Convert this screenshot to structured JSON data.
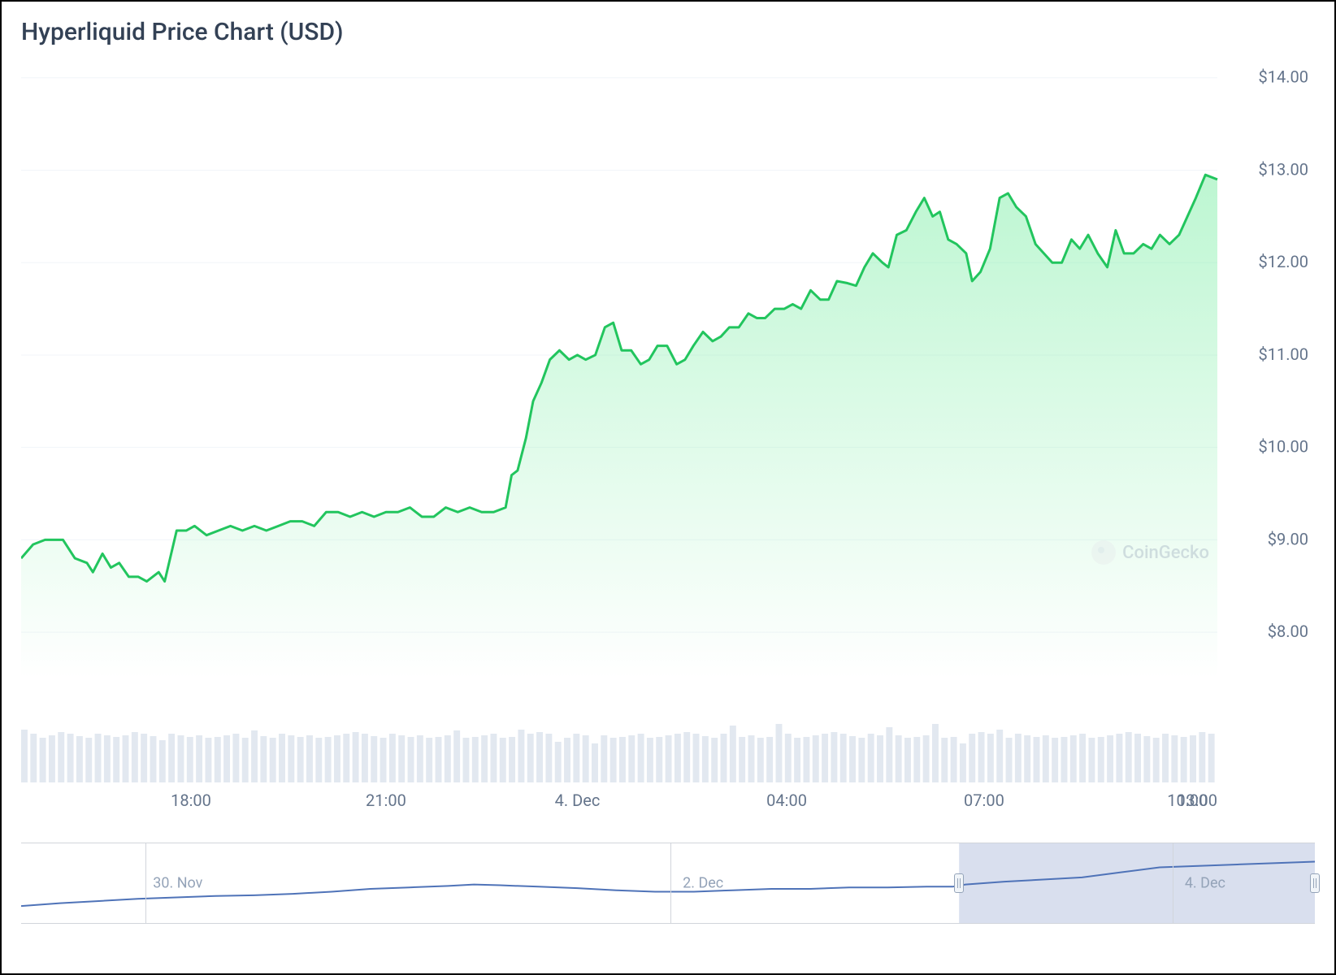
{
  "title": "Hyperliquid Price Chart (USD)",
  "watermark": "CoinGecko",
  "main_chart": {
    "type": "area",
    "line_color": "#22c55e",
    "line_width": 3,
    "fill_top": "rgba(134, 239, 172, 0.55)",
    "fill_bottom": "rgba(134, 239, 172, 0.0)",
    "grid_color": "#f1f5f9",
    "axis_text_color": "#64748b",
    "axis_fontsize": 20,
    "y_min": 7.5,
    "y_max": 14.2,
    "y_ticks": [
      8,
      9,
      10,
      11,
      12,
      13,
      14
    ],
    "y_tick_labels": [
      "$8.00",
      "$9.00",
      "$10.00",
      "$11.00",
      "$12.00",
      "$13.00",
      "$14.00"
    ],
    "x_ticks": [
      0.135,
      0.3,
      0.465,
      0.64,
      0.81,
      0.98
    ],
    "x_tick_labels": [
      "18:00",
      "21:00",
      "4. Dec",
      "04:00",
      "07:00",
      "10:00",
      "13:00"
    ],
    "x_tick_positions": [
      0.142,
      0.305,
      0.465,
      0.64,
      0.805,
      0.975,
      1.0
    ],
    "data": [
      [
        0.0,
        8.8
      ],
      [
        0.01,
        8.95
      ],
      [
        0.02,
        9.0
      ],
      [
        0.035,
        9.0
      ],
      [
        0.045,
        8.8
      ],
      [
        0.055,
        8.75
      ],
      [
        0.06,
        8.65
      ],
      [
        0.068,
        8.85
      ],
      [
        0.075,
        8.7
      ],
      [
        0.082,
        8.75
      ],
      [
        0.09,
        8.6
      ],
      [
        0.098,
        8.6
      ],
      [
        0.105,
        8.55
      ],
      [
        0.115,
        8.65
      ],
      [
        0.12,
        8.55
      ],
      [
        0.13,
        9.1
      ],
      [
        0.138,
        9.1
      ],
      [
        0.145,
        9.15
      ],
      [
        0.155,
        9.05
      ],
      [
        0.165,
        9.1
      ],
      [
        0.175,
        9.15
      ],
      [
        0.185,
        9.1
      ],
      [
        0.195,
        9.15
      ],
      [
        0.205,
        9.1
      ],
      [
        0.215,
        9.15
      ],
      [
        0.225,
        9.2
      ],
      [
        0.235,
        9.2
      ],
      [
        0.245,
        9.15
      ],
      [
        0.255,
        9.3
      ],
      [
        0.265,
        9.3
      ],
      [
        0.275,
        9.25
      ],
      [
        0.285,
        9.3
      ],
      [
        0.295,
        9.25
      ],
      [
        0.305,
        9.3
      ],
      [
        0.315,
        9.3
      ],
      [
        0.325,
        9.35
      ],
      [
        0.335,
        9.25
      ],
      [
        0.345,
        9.25
      ],
      [
        0.355,
        9.35
      ],
      [
        0.365,
        9.3
      ],
      [
        0.375,
        9.35
      ],
      [
        0.385,
        9.3
      ],
      [
        0.395,
        9.3
      ],
      [
        0.405,
        9.35
      ],
      [
        0.41,
        9.7
      ],
      [
        0.415,
        9.75
      ],
      [
        0.422,
        10.1
      ],
      [
        0.428,
        10.5
      ],
      [
        0.435,
        10.7
      ],
      [
        0.442,
        10.95
      ],
      [
        0.45,
        11.05
      ],
      [
        0.458,
        10.95
      ],
      [
        0.465,
        11.0
      ],
      [
        0.472,
        10.95
      ],
      [
        0.48,
        11.0
      ],
      [
        0.488,
        11.3
      ],
      [
        0.495,
        11.35
      ],
      [
        0.502,
        11.05
      ],
      [
        0.51,
        11.05
      ],
      [
        0.518,
        10.9
      ],
      [
        0.525,
        10.95
      ],
      [
        0.532,
        11.1
      ],
      [
        0.54,
        11.1
      ],
      [
        0.548,
        10.9
      ],
      [
        0.555,
        10.95
      ],
      [
        0.562,
        11.1
      ],
      [
        0.57,
        11.25
      ],
      [
        0.578,
        11.15
      ],
      [
        0.585,
        11.2
      ],
      [
        0.592,
        11.3
      ],
      [
        0.6,
        11.3
      ],
      [
        0.608,
        11.45
      ],
      [
        0.615,
        11.4
      ],
      [
        0.622,
        11.4
      ],
      [
        0.63,
        11.5
      ],
      [
        0.638,
        11.5
      ],
      [
        0.645,
        11.55
      ],
      [
        0.652,
        11.5
      ],
      [
        0.66,
        11.7
      ],
      [
        0.668,
        11.6
      ],
      [
        0.675,
        11.6
      ],
      [
        0.682,
        11.8
      ],
      [
        0.69,
        11.78
      ],
      [
        0.698,
        11.75
      ],
      [
        0.705,
        11.95
      ],
      [
        0.712,
        12.1
      ],
      [
        0.72,
        12.0
      ],
      [
        0.725,
        11.95
      ],
      [
        0.732,
        12.3
      ],
      [
        0.74,
        12.35
      ],
      [
        0.748,
        12.55
      ],
      [
        0.755,
        12.7
      ],
      [
        0.762,
        12.5
      ],
      [
        0.768,
        12.55
      ],
      [
        0.775,
        12.25
      ],
      [
        0.782,
        12.2
      ],
      [
        0.79,
        12.1
      ],
      [
        0.795,
        11.8
      ],
      [
        0.802,
        11.9
      ],
      [
        0.81,
        12.15
      ],
      [
        0.818,
        12.7
      ],
      [
        0.825,
        12.75
      ],
      [
        0.832,
        12.6
      ],
      [
        0.84,
        12.5
      ],
      [
        0.848,
        12.2
      ],
      [
        0.855,
        12.1
      ],
      [
        0.862,
        12.0
      ],
      [
        0.87,
        12.0
      ],
      [
        0.878,
        12.25
      ],
      [
        0.885,
        12.15
      ],
      [
        0.892,
        12.3
      ],
      [
        0.9,
        12.1
      ],
      [
        0.908,
        11.95
      ],
      [
        0.915,
        12.35
      ],
      [
        0.922,
        12.1
      ],
      [
        0.93,
        12.1
      ],
      [
        0.938,
        12.2
      ],
      [
        0.945,
        12.15
      ],
      [
        0.952,
        12.3
      ],
      [
        0.96,
        12.2
      ],
      [
        0.968,
        12.3
      ],
      [
        0.975,
        12.5
      ],
      [
        0.982,
        12.7
      ],
      [
        0.99,
        12.95
      ],
      [
        1.0,
        12.9
      ]
    ]
  },
  "volume_chart": {
    "bar_color": "#e2e8f0",
    "bar_count": 130,
    "base_height": 0.62,
    "heights": [
      0.65,
      0.6,
      0.55,
      0.58,
      0.62,
      0.6,
      0.57,
      0.55,
      0.6,
      0.58,
      0.56,
      0.58,
      0.62,
      0.6,
      0.57,
      0.52,
      0.6,
      0.58,
      0.56,
      0.58,
      0.55,
      0.56,
      0.58,
      0.6,
      0.55,
      0.64,
      0.57,
      0.55,
      0.6,
      0.58,
      0.56,
      0.58,
      0.55,
      0.56,
      0.58,
      0.6,
      0.62,
      0.6,
      0.57,
      0.55,
      0.6,
      0.58,
      0.56,
      0.58,
      0.55,
      0.56,
      0.58,
      0.64,
      0.55,
      0.56,
      0.58,
      0.6,
      0.55,
      0.56,
      0.65,
      0.6,
      0.62,
      0.6,
      0.5,
      0.55,
      0.6,
      0.58,
      0.48,
      0.58,
      0.55,
      0.56,
      0.58,
      0.6,
      0.55,
      0.56,
      0.58,
      0.6,
      0.62,
      0.6,
      0.57,
      0.55,
      0.6,
      0.7,
      0.56,
      0.58,
      0.55,
      0.56,
      0.72,
      0.6,
      0.55,
      0.56,
      0.58,
      0.6,
      0.62,
      0.6,
      0.57,
      0.55,
      0.6,
      0.58,
      0.68,
      0.58,
      0.55,
      0.56,
      0.58,
      0.72,
      0.55,
      0.56,
      0.48,
      0.6,
      0.62,
      0.6,
      0.65,
      0.55,
      0.6,
      0.58,
      0.56,
      0.58,
      0.55,
      0.56,
      0.58,
      0.6,
      0.55,
      0.56,
      0.58,
      0.6,
      0.62,
      0.6,
      0.57,
      0.55,
      0.6,
      0.58,
      0.56,
      0.58,
      0.62,
      0.6
    ]
  },
  "navigator": {
    "line_color": "#4f73b8",
    "line_width": 2,
    "selection_fill": "rgba(130, 150, 200, 0.30)",
    "selection_start": 0.725,
    "selection_end": 1.0,
    "tick_positions": [
      0.096,
      0.502,
      0.89
    ],
    "tick_labels": [
      "30. Nov",
      "2. Dec",
      "4. Dec"
    ],
    "data": [
      [
        0.0,
        0.18
      ],
      [
        0.03,
        0.22
      ],
      [
        0.06,
        0.25
      ],
      [
        0.09,
        0.28
      ],
      [
        0.12,
        0.3
      ],
      [
        0.15,
        0.32
      ],
      [
        0.18,
        0.33
      ],
      [
        0.21,
        0.35
      ],
      [
        0.24,
        0.38
      ],
      [
        0.27,
        0.42
      ],
      [
        0.3,
        0.44
      ],
      [
        0.33,
        0.46
      ],
      [
        0.35,
        0.48
      ],
      [
        0.37,
        0.47
      ],
      [
        0.4,
        0.45
      ],
      [
        0.43,
        0.43
      ],
      [
        0.46,
        0.4
      ],
      [
        0.49,
        0.38
      ],
      [
        0.52,
        0.38
      ],
      [
        0.55,
        0.4
      ],
      [
        0.58,
        0.42
      ],
      [
        0.61,
        0.42
      ],
      [
        0.64,
        0.44
      ],
      [
        0.67,
        0.44
      ],
      [
        0.7,
        0.45
      ],
      [
        0.72,
        0.45
      ],
      [
        0.73,
        0.48
      ],
      [
        0.76,
        0.52
      ],
      [
        0.79,
        0.55
      ],
      [
        0.82,
        0.58
      ],
      [
        0.85,
        0.65
      ],
      [
        0.88,
        0.72
      ],
      [
        0.91,
        0.74
      ],
      [
        0.94,
        0.76
      ],
      [
        0.97,
        0.78
      ],
      [
        1.0,
        0.8
      ]
    ]
  }
}
